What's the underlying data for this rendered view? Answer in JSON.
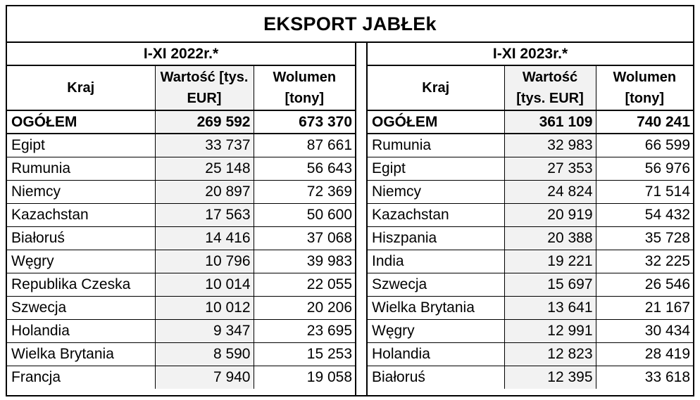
{
  "title": "EKSPORT JABŁEk",
  "headers": {
    "country": "Kraj"
  },
  "left": {
    "period": "I-XI 2022r.*",
    "value_header": "Wartość [tys. EUR]",
    "volume_header": "Wolumen [tony]",
    "total": {
      "country": "OGÓŁEM",
      "value": "269 592",
      "volume": "673 370"
    },
    "rows": [
      {
        "country": "Egipt",
        "value": "33 737",
        "volume": "87 661"
      },
      {
        "country": "Rumunia",
        "value": "25 148",
        "volume": "56 643"
      },
      {
        "country": "Niemcy",
        "value": "20 897",
        "volume": "72 369"
      },
      {
        "country": "Kazachstan",
        "value": "17 563",
        "volume": "50 600"
      },
      {
        "country": "Białoruś",
        "value": "14 416",
        "volume": "37 068"
      },
      {
        "country": "Węgry",
        "value": "10 796",
        "volume": "39 983"
      },
      {
        "country": "Republika Czeska",
        "value": "10 014",
        "volume": "22 055"
      },
      {
        "country": "Szwecja",
        "value": "10 012",
        "volume": "20 206"
      },
      {
        "country": "Holandia",
        "value": "9 347",
        "volume": "23 695"
      },
      {
        "country": "Wielka Brytania",
        "value": "8 590",
        "volume": "15 253"
      },
      {
        "country": "Francja",
        "value": "7 940",
        "volume": "19 058"
      }
    ]
  },
  "right": {
    "period": "I-XI 2023r.*",
    "value_header": "Wartość [tys. EUR]",
    "volume_header": "Wolumen [tony]",
    "total": {
      "country": "OGÓŁEM",
      "value": "361 109",
      "volume": "740 241"
    },
    "rows": [
      {
        "country": "Rumunia",
        "value": "32 983",
        "volume": "66 599"
      },
      {
        "country": "Egipt",
        "value": "27 353",
        "volume": "56 976"
      },
      {
        "country": "Niemcy",
        "value": "24 824",
        "volume": "71 514"
      },
      {
        "country": "Kazachstan",
        "value": "20 919",
        "volume": "54 432"
      },
      {
        "country": "Hiszpania",
        "value": "20 388",
        "volume": "35 728"
      },
      {
        "country": "India",
        "value": "19 221",
        "volume": "32 225"
      },
      {
        "country": "Szwecja",
        "value": "15 697",
        "volume": "26 546"
      },
      {
        "country": "Wielka Brytania",
        "value": "13 641",
        "volume": "21 167"
      },
      {
        "country": "Węgry",
        "value": "12 991",
        "volume": "30 434"
      },
      {
        "country": "Holandia",
        "value": "12 823",
        "volume": "28 419"
      },
      {
        "country": "Białoruś",
        "value": "12 395",
        "volume": "33 618"
      }
    ]
  }
}
